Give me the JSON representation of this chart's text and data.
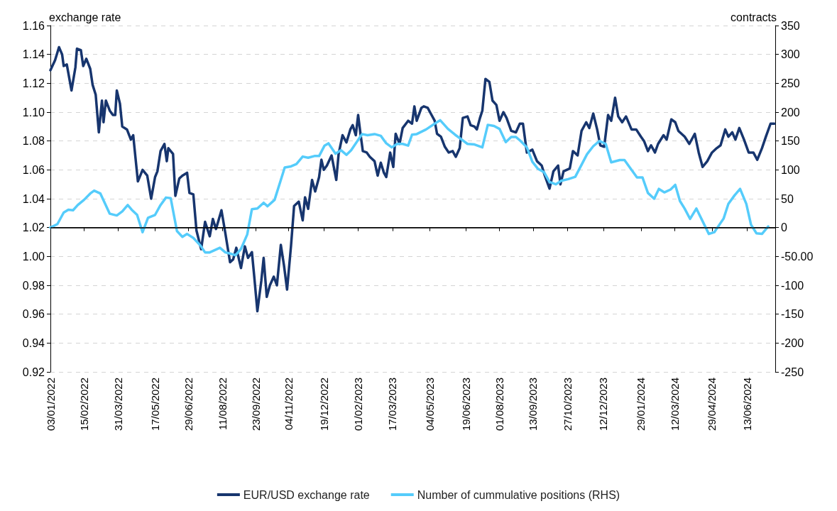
{
  "chart_data": {
    "type": "line",
    "ylabel": "exchange rate",
    "y2label": "contracts",
    "legend": "bottom",
    "grid": "y",
    "marker": "none",
    "line_style": "solid",
    "xlim": [
      "2022-01-03",
      "2024-07-19"
    ],
    "xticks": [
      {
        "value": "2022-01-03",
        "label": "03/01/2022"
      },
      {
        "value": "2022-02-15",
        "label": "15/02/2022"
      },
      {
        "value": "2022-03-31",
        "label": "31/03/2022"
      },
      {
        "value": "2022-05-17",
        "label": "17/05/2022"
      },
      {
        "value": "2022-06-29",
        "label": "29/06/2022"
      },
      {
        "value": "2022-08-11",
        "label": "11/08/2022"
      },
      {
        "value": "2022-09-23",
        "label": "23/09/2022"
      },
      {
        "value": "2022-11-04",
        "label": "04/11/2022"
      },
      {
        "value": "2022-12-19",
        "label": "19/12/2022"
      },
      {
        "value": "2023-02-01",
        "label": "01/02/2023"
      },
      {
        "value": "2023-03-17",
        "label": "17/03/2023"
      },
      {
        "value": "2023-05-04",
        "label": "04/05/2023"
      },
      {
        "value": "2023-06-19",
        "label": "19/06/2023"
      },
      {
        "value": "2023-08-01",
        "label": "01/08/2023"
      },
      {
        "value": "2023-09-13",
        "label": "13/09/2023"
      },
      {
        "value": "2023-10-27",
        "label": "27/10/2023"
      },
      {
        "value": "2023-12-12",
        "label": "12/12/2023"
      },
      {
        "value": "2024-01-29",
        "label": "29/01/2024"
      },
      {
        "value": "2024-03-12",
        "label": "12/03/2024"
      },
      {
        "value": "2024-04-29",
        "label": "29/04/2024"
      },
      {
        "value": "2024-06-13",
        "label": "13/06/2024"
      }
    ],
    "ylim": [
      0.92,
      1.16
    ],
    "yticks": [
      {
        "value": 0.92,
        "label": "0.92"
      },
      {
        "value": 0.94,
        "label": "0.94"
      },
      {
        "value": 0.96,
        "label": "0.96"
      },
      {
        "value": 0.98,
        "label": "0.98"
      },
      {
        "value": 1.0,
        "label": "1.00"
      },
      {
        "value": 1.02,
        "label": "1.02"
      },
      {
        "value": 1.04,
        "label": "1.04"
      },
      {
        "value": 1.06,
        "label": "1.06"
      },
      {
        "value": 1.08,
        "label": "1.08"
      },
      {
        "value": 1.1,
        "label": "1.10"
      },
      {
        "value": 1.12,
        "label": "1.12"
      },
      {
        "value": 1.14,
        "label": "1.14"
      },
      {
        "value": 1.16,
        "label": "1.16"
      }
    ],
    "y2lim": [
      -250,
      350
    ],
    "y2ticks": [
      -250,
      -200,
      -150,
      -100,
      {
        "value": -50,
        "label": "-50.00"
      },
      0,
      50,
      100,
      150,
      200,
      250,
      300,
      350
    ],
    "ref_lines": [
      {
        "axis": "y2",
        "value": 0,
        "color": "#000000"
      }
    ],
    "series": [
      {
        "name": "EUR/USD exchange rate",
        "color": "#17356e",
        "x": [
          "2022-01-03",
          "2022-01-09",
          "2022-01-14",
          "2022-01-18",
          "2022-01-20",
          "2022-01-24",
          "2022-01-30",
          "2022-02-04",
          "2022-02-06",
          "2022-02-11",
          "2022-02-14",
          "2022-02-18",
          "2022-02-23",
          "2022-02-26",
          "2022-03-02",
          "2022-03-06",
          "2022-03-10",
          "2022-03-12",
          "2022-03-15",
          "2022-03-20",
          "2022-03-24",
          "2022-03-27",
          "2022-03-29",
          "2022-04-02",
          "2022-04-05",
          "2022-04-11",
          "2022-04-16",
          "2022-04-19",
          "2022-04-25",
          "2022-05-01",
          "2022-05-07",
          "2022-05-12",
          "2022-05-17",
          "2022-05-20",
          "2022-05-24",
          "2022-05-29",
          "2022-06-01",
          "2022-06-03",
          "2022-06-09",
          "2022-06-12",
          "2022-06-17",
          "2022-06-21",
          "2022-06-27",
          "2022-06-30",
          "2022-07-05",
          "2022-07-09",
          "2022-07-15",
          "2022-07-20",
          "2022-07-26",
          "2022-07-30",
          "2022-08-03",
          "2022-08-10",
          "2022-08-15",
          "2022-08-21",
          "2022-08-25",
          "2022-08-29",
          "2022-09-04",
          "2022-09-09",
          "2022-09-13",
          "2022-09-18",
          "2022-09-21",
          "2022-09-25",
          "2022-09-30",
          "2022-10-03",
          "2022-10-07",
          "2022-10-11",
          "2022-10-16",
          "2022-10-20",
          "2022-10-25",
          "2022-10-29",
          "2022-11-02",
          "2022-11-07",
          "2022-11-11",
          "2022-11-17",
          "2022-11-22",
          "2022-11-25",
          "2022-11-29",
          "2022-12-04",
          "2022-12-08",
          "2022-12-13",
          "2022-12-16",
          "2022-12-19",
          "2022-12-23",
          "2022-12-29",
          "2023-01-04",
          "2023-01-07",
          "2023-01-12",
          "2023-01-17",
          "2023-01-22",
          "2023-01-25",
          "2023-01-29",
          "2023-02-01",
          "2023-02-04",
          "2023-02-07",
          "2023-02-12",
          "2023-02-16",
          "2023-02-22",
          "2023-02-26",
          "2023-03-02",
          "2023-03-06",
          "2023-03-09",
          "2023-03-14",
          "2023-03-18",
          "2023-03-21",
          "2023-03-26",
          "2023-03-30",
          "2023-04-06",
          "2023-04-11",
          "2023-04-14",
          "2023-04-17",
          "2023-04-23",
          "2023-04-26",
          "2023-05-01",
          "2023-05-05",
          "2023-05-10",
          "2023-05-13",
          "2023-05-18",
          "2023-05-23",
          "2023-05-28",
          "2023-06-02",
          "2023-06-06",
          "2023-06-11",
          "2023-06-15",
          "2023-06-21",
          "2023-06-25",
          "2023-06-30",
          "2023-07-03",
          "2023-07-07",
          "2023-07-10",
          "2023-07-14",
          "2023-07-19",
          "2023-07-23",
          "2023-07-28",
          "2023-08-01",
          "2023-08-06",
          "2023-08-10",
          "2023-08-16",
          "2023-08-22",
          "2023-08-27",
          "2023-08-31",
          "2023-09-05",
          "2023-09-12",
          "2023-09-18",
          "2023-09-24",
          "2023-09-28",
          "2023-10-04",
          "2023-10-09",
          "2023-10-15",
          "2023-10-18",
          "2023-10-22",
          "2023-10-30",
          "2023-11-03",
          "2023-11-09",
          "2023-11-14",
          "2023-11-20",
          "2023-11-24",
          "2023-11-29",
          "2023-12-04",
          "2023-12-08",
          "2023-12-13",
          "2023-12-18",
          "2023-12-22",
          "2023-12-27",
          "2023-12-31",
          "2024-01-05",
          "2024-01-10",
          "2024-01-17",
          "2024-01-23",
          "2024-01-29",
          "2024-02-02",
          "2024-02-07",
          "2024-02-11",
          "2024-02-16",
          "2024-02-20",
          "2024-02-27",
          "2024-03-02",
          "2024-03-08",
          "2024-03-13",
          "2024-03-17",
          "2024-03-25",
          "2024-03-31",
          "2024-04-07",
          "2024-04-12",
          "2024-04-17",
          "2024-04-23",
          "2024-04-29",
          "2024-05-05",
          "2024-05-10",
          "2024-05-16",
          "2024-05-20",
          "2024-05-25",
          "2024-05-29",
          "2024-06-03",
          "2024-06-09",
          "2024-06-15",
          "2024-06-21",
          "2024-06-26",
          "2024-07-02",
          "2024-07-07",
          "2024-07-13",
          "2024-07-18"
        ],
        "values": [
          1.129,
          1.136,
          1.145,
          1.14,
          1.132,
          1.133,
          1.115,
          1.131,
          1.144,
          1.143,
          1.132,
          1.137,
          1.13,
          1.119,
          1.112,
          1.086,
          1.108,
          1.093,
          1.108,
          1.101,
          1.098,
          1.098,
          1.115,
          1.106,
          1.09,
          1.088,
          1.081,
          1.084,
          1.052,
          1.06,
          1.056,
          1.04,
          1.055,
          1.059,
          1.073,
          1.078,
          1.066,
          1.075,
          1.071,
          1.042,
          1.054,
          1.056,
          1.058,
          1.044,
          1.043,
          1.018,
          1.005,
          1.024,
          1.014,
          1.026,
          1.019,
          1.032,
          1.016,
          0.996,
          0.998,
          1.006,
          0.992,
          1.007,
          0.999,
          1.003,
          0.986,
          0.962,
          0.983,
          0.999,
          0.972,
          0.98,
          0.986,
          0.98,
          1.008,
          0.994,
          0.977,
          1.007,
          1.035,
          1.038,
          1.025,
          1.041,
          1.033,
          1.053,
          1.045,
          1.055,
          1.067,
          1.06,
          1.063,
          1.07,
          1.053,
          1.071,
          1.084,
          1.079,
          1.088,
          1.091,
          1.084,
          1.098,
          1.085,
          1.073,
          1.072,
          1.069,
          1.066,
          1.056,
          1.065,
          1.058,
          1.055,
          1.072,
          1.062,
          1.085,
          1.078,
          1.089,
          1.094,
          1.092,
          1.104,
          1.094,
          1.103,
          1.104,
          1.103,
          1.099,
          1.094,
          1.085,
          1.083,
          1.076,
          1.072,
          1.073,
          1.069,
          1.075,
          1.096,
          1.097,
          1.091,
          1.09,
          1.088,
          1.096,
          1.101,
          1.123,
          1.121,
          1.108,
          1.105,
          1.094,
          1.1,
          1.096,
          1.087,
          1.086,
          1.092,
          1.092,
          1.072,
          1.074,
          1.066,
          1.063,
          1.056,
          1.047,
          1.059,
          1.063,
          1.05,
          1.059,
          1.061,
          1.073,
          1.07,
          1.087,
          1.093,
          1.089,
          1.099,
          1.088,
          1.077,
          1.076,
          1.098,
          1.094,
          1.11,
          1.097,
          1.093,
          1.097,
          1.088,
          1.088,
          1.083,
          1.08,
          1.073,
          1.077,
          1.072,
          1.078,
          1.084,
          1.081,
          1.095,
          1.093,
          1.087,
          1.083,
          1.078,
          1.085,
          1.072,
          1.062,
          1.066,
          1.072,
          1.075,
          1.077,
          1.088,
          1.083,
          1.086,
          1.081,
          1.089,
          1.081,
          1.072,
          1.072,
          1.067,
          1.075,
          1.083,
          1.092,
          1.092
        ]
      },
      {
        "name": "Number of cummulative positions (RHS)",
        "color": "#55ccfb",
        "axis": "y2",
        "x": [
          "2022-01-03",
          "2022-01-12",
          "2022-01-20",
          "2022-01-26",
          "2022-02-01",
          "2022-02-07",
          "2022-02-15",
          "2022-02-23",
          "2022-02-28",
          "2022-03-08",
          "2022-03-20",
          "2022-03-29",
          "2022-04-05",
          "2022-04-12",
          "2022-04-17",
          "2022-04-24",
          "2022-05-01",
          "2022-05-08",
          "2022-05-17",
          "2022-05-24",
          "2022-05-31",
          "2022-06-06",
          "2022-06-14",
          "2022-06-21",
          "2022-06-27",
          "2022-07-05",
          "2022-07-14",
          "2022-07-20",
          "2022-07-26",
          "2022-08-08",
          "2022-08-15",
          "2022-08-21",
          "2022-08-28",
          "2022-09-04",
          "2022-09-12",
          "2022-09-18",
          "2022-09-25",
          "2022-10-03",
          "2022-10-08",
          "2022-10-17",
          "2022-10-30",
          "2022-11-07",
          "2022-11-14",
          "2022-11-22",
          "2022-11-29",
          "2022-12-07",
          "2022-12-13",
          "2022-12-20",
          "2022-12-25",
          "2023-01-03",
          "2023-01-10",
          "2023-01-17",
          "2023-01-23",
          "2023-02-06",
          "2023-02-13",
          "2023-02-22",
          "2023-03-02",
          "2023-03-09",
          "2023-03-16",
          "2023-03-23",
          "2023-03-30",
          "2023-04-06",
          "2023-04-11",
          "2023-04-17",
          "2023-04-29",
          "2023-05-11",
          "2023-05-17",
          "2023-05-27",
          "2023-06-05",
          "2023-06-12",
          "2023-06-21",
          "2023-06-30",
          "2023-07-10",
          "2023-07-17",
          "2023-07-25",
          "2023-08-01",
          "2023-08-09",
          "2023-08-16",
          "2023-08-22",
          "2023-08-28",
          "2023-09-05",
          "2023-09-12",
          "2023-09-19",
          "2023-09-27",
          "2023-10-04",
          "2023-10-12",
          "2023-10-19",
          "2023-10-28",
          "2023-11-06",
          "2023-11-21",
          "2023-11-29",
          "2023-12-07",
          "2023-12-15",
          "2023-12-22",
          "2024-01-02",
          "2024-01-08",
          "2024-01-24",
          "2024-01-31",
          "2024-02-07",
          "2024-02-15",
          "2024-02-21",
          "2024-02-28",
          "2024-03-07",
          "2024-03-13",
          "2024-03-19",
          "2024-03-25",
          "2024-04-01",
          "2024-04-09",
          "2024-04-25",
          "2024-05-02",
          "2024-05-14",
          "2024-05-20",
          "2024-05-28",
          "2024-06-04",
          "2024-06-12",
          "2024-06-18",
          "2024-06-25",
          "2024-07-02",
          "2024-07-10"
        ],
        "values": [
          0,
          6,
          26,
          31,
          30,
          39,
          48,
          59,
          64,
          59,
          24,
          21,
          28,
          39,
          31,
          22,
          -8,
          17,
          22,
          39,
          52,
          51,
          -6,
          -16,
          -11,
          -18,
          -31,
          -43,
          -43,
          -35,
          -43,
          -45,
          -48,
          -37,
          -12,
          32,
          33,
          43,
          37,
          48,
          104,
          106,
          110,
          123,
          121,
          124,
          124,
          142,
          146,
          128,
          134,
          126,
          134,
          162,
          160,
          162,
          159,
          146,
          139,
          145,
          145,
          142,
          161,
          162,
          170,
          181,
          186,
          171,
          161,
          154,
          145,
          144,
          139,
          178,
          176,
          171,
          148,
          157,
          157,
          150,
          139,
          114,
          102,
          96,
          79,
          75,
          81,
          84,
          88,
          127,
          141,
          150,
          145,
          113,
          117,
          117,
          87,
          87,
          60,
          50,
          67,
          61,
          66,
          74,
          46,
          33,
          15,
          33,
          -11,
          -8,
          16,
          41,
          56,
          67,
          41,
          5,
          -10,
          -11,
          2
        ]
      }
    ]
  }
}
